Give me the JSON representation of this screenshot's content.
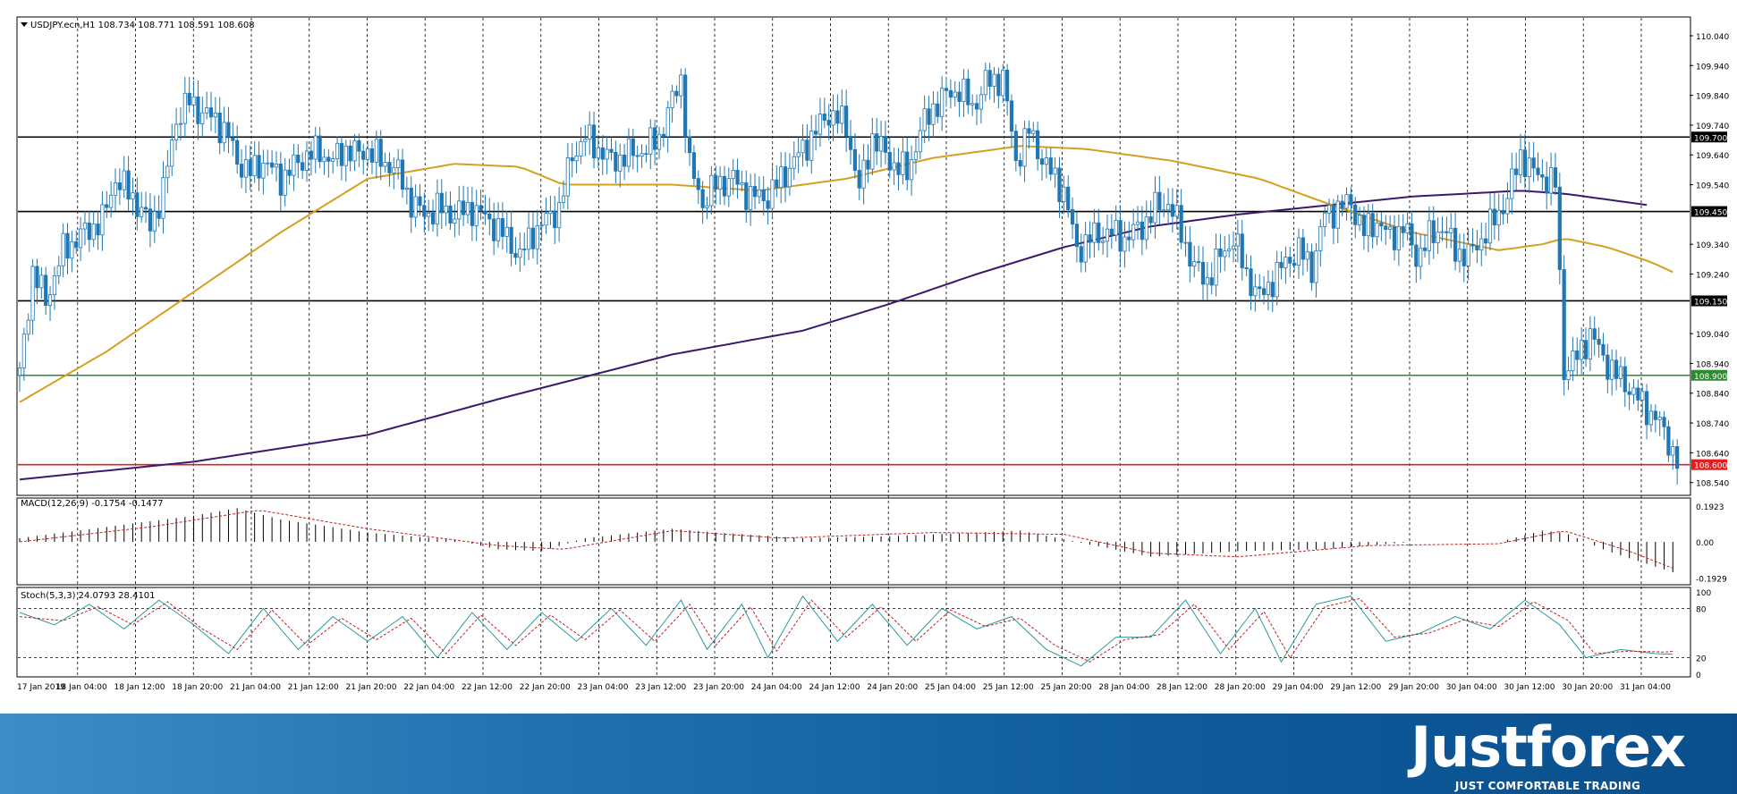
{
  "header": {
    "symbol_info": "USDJPY.ecn,H1  108.734 108.771 108.591 108.608"
  },
  "chart_data": {
    "type": "candlestick",
    "symbol": "USDJPY.ecn",
    "timeframe": "H1",
    "ohlc_header": [
      108.734,
      108.771,
      108.591,
      108.608
    ],
    "y_range": [
      108.5,
      110.1
    ],
    "y_ticks": [
      "110.040",
      "109.940",
      "109.840",
      "109.740",
      "109.640",
      "109.540",
      "109.340",
      "109.240",
      "109.040",
      "108.940",
      "108.840",
      "108.740",
      "108.640",
      "108.540"
    ],
    "x_ticks": [
      "17 Jan 2019",
      "18 Jan 04:00",
      "18 Jan 12:00",
      "18 Jan 20:00",
      "21 Jan 04:00",
      "21 Jan 12:00",
      "21 Jan 20:00",
      "22 Jan 04:00",
      "22 Jan 12:00",
      "22 Jan 20:00",
      "23 Jan 04:00",
      "23 Jan 12:00",
      "23 Jan 20:00",
      "24 Jan 04:00",
      "24 Jan 12:00",
      "24 Jan 20:00",
      "25 Jan 04:00",
      "25 Jan 12:00",
      "25 Jan 20:00",
      "28 Jan 04:00",
      "28 Jan 12:00",
      "28 Jan 20:00",
      "29 Jan 04:00",
      "29 Jan 12:00",
      "29 Jan 20:00",
      "30 Jan 04:00",
      "30 Jan 12:00",
      "30 Jan 20:00",
      "31 Jan 04:00"
    ],
    "levels": [
      {
        "label": "109.700",
        "value": 109.7,
        "color": "#000000"
      },
      {
        "label": "109.450",
        "value": 109.45,
        "color": "#000000"
      },
      {
        "label": "109.150",
        "value": 109.15,
        "color": "#000000"
      },
      {
        "label": "108.900",
        "value": 108.9,
        "color": "#2e8b2e"
      },
      {
        "label": "108.600",
        "value": 108.6,
        "color": "#e02020"
      }
    ],
    "close_path": [
      [
        0,
        108.9
      ],
      [
        3,
        109.25
      ],
      [
        6,
        109.15
      ],
      [
        10,
        109.32
      ],
      [
        15,
        109.38
      ],
      [
        19,
        109.42
      ],
      [
        22,
        109.56
      ],
      [
        26,
        109.5
      ],
      [
        30,
        109.4
      ],
      [
        33,
        109.52
      ],
      [
        36,
        109.76
      ],
      [
        39,
        109.82
      ],
      [
        42,
        109.78
      ],
      [
        45,
        109.76
      ],
      [
        48,
        109.7
      ],
      [
        50,
        109.62
      ],
      [
        53,
        109.58
      ],
      [
        56,
        109.62
      ],
      [
        60,
        109.56
      ],
      [
        63,
        109.6
      ],
      [
        66,
        109.64
      ],
      [
        69,
        109.65
      ],
      [
        72,
        109.62
      ],
      [
        75,
        109.66
      ],
      [
        78,
        109.64
      ],
      [
        80,
        109.66
      ],
      [
        83,
        109.62
      ],
      [
        86,
        109.6
      ],
      [
        88,
        109.55
      ],
      [
        90,
        109.48
      ],
      [
        93,
        109.44
      ],
      [
        96,
        109.46
      ],
      [
        100,
        109.44
      ],
      [
        104,
        109.46
      ],
      [
        108,
        109.42
      ],
      [
        112,
        109.36
      ],
      [
        115,
        109.3
      ],
      [
        118,
        109.38
      ],
      [
        121,
        109.42
      ],
      [
        124,
        109.46
      ],
      [
        127,
        109.64
      ],
      [
        130,
        109.7
      ],
      [
        133,
        109.66
      ],
      [
        136,
        109.62
      ],
      [
        140,
        109.64
      ],
      [
        144,
        109.66
      ],
      [
        147,
        109.7
      ],
      [
        150,
        109.82
      ],
      [
        152,
        109.9
      ],
      [
        154,
        109.6
      ],
      [
        157,
        109.48
      ],
      [
        160,
        109.54
      ],
      [
        164,
        109.56
      ],
      [
        168,
        109.5
      ],
      [
        172,
        109.5
      ],
      [
        176,
        109.58
      ],
      [
        180,
        109.66
      ],
      [
        183,
        109.72
      ],
      [
        186,
        109.78
      ],
      [
        190,
        109.74
      ],
      [
        193,
        109.52
      ],
      [
        196,
        109.7
      ],
      [
        200,
        109.62
      ],
      [
        204,
        109.58
      ],
      [
        207,
        109.72
      ],
      [
        210,
        109.8
      ],
      [
        213,
        109.84
      ],
      [
        216,
        109.86
      ],
      [
        219,
        109.8
      ],
      [
        222,
        109.88
      ],
      [
        226,
        109.9
      ],
      [
        229,
        109.62
      ],
      [
        232,
        109.72
      ],
      [
        236,
        109.6
      ],
      [
        240,
        109.52
      ],
      [
        243,
        109.32
      ],
      [
        246,
        109.36
      ],
      [
        250,
        109.38
      ],
      [
        254,
        109.36
      ],
      [
        258,
        109.4
      ],
      [
        261,
        109.46
      ],
      [
        264,
        109.48
      ],
      [
        267,
        109.38
      ],
      [
        270,
        109.26
      ],
      [
        273,
        109.22
      ],
      [
        276,
        109.3
      ],
      [
        279,
        109.36
      ],
      [
        282,
        109.24
      ],
      [
        285,
        109.16
      ],
      [
        288,
        109.22
      ],
      [
        291,
        109.28
      ],
      [
        294,
        109.32
      ],
      [
        297,
        109.26
      ],
      [
        300,
        109.44
      ],
      [
        303,
        109.46
      ],
      [
        306,
        109.48
      ],
      [
        309,
        109.38
      ],
      [
        312,
        109.42
      ],
      [
        315,
        109.36
      ],
      [
        318,
        109.4
      ],
      [
        321,
        109.3
      ],
      [
        324,
        109.36
      ],
      [
        327,
        109.4
      ],
      [
        330,
        109.32
      ],
      [
        333,
        109.3
      ],
      [
        336,
        109.36
      ],
      [
        339,
        109.42
      ],
      [
        342,
        109.5
      ],
      [
        345,
        109.64
      ],
      [
        348,
        109.58
      ],
      [
        351,
        109.56
      ],
      [
        353,
        109.54
      ],
      [
        355,
        108.92
      ],
      [
        358,
        108.96
      ],
      [
        361,
        109.04
      ],
      [
        364,
        108.96
      ],
      [
        367,
        108.9
      ],
      [
        370,
        108.86
      ],
      [
        373,
        108.8
      ],
      [
        376,
        108.76
      ],
      [
        379,
        108.68
      ],
      [
        381,
        108.61
      ]
    ],
    "ma_slow_path": [
      [
        0,
        108.55
      ],
      [
        40,
        108.61
      ],
      [
        80,
        108.7
      ],
      [
        110,
        108.82
      ],
      [
        150,
        108.97
      ],
      [
        180,
        109.05
      ],
      [
        200,
        109.14
      ],
      [
        220,
        109.24
      ],
      [
        240,
        109.33
      ],
      [
        260,
        109.4
      ],
      [
        280,
        109.44
      ],
      [
        300,
        109.47
      ],
      [
        320,
        109.5
      ],
      [
        345,
        109.52
      ],
      [
        355,
        109.51
      ],
      [
        375,
        109.47
      ]
    ],
    "ma_fast_path": [
      [
        0,
        108.81
      ],
      [
        20,
        108.98
      ],
      [
        40,
        109.18
      ],
      [
        60,
        109.38
      ],
      [
        80,
        109.56
      ],
      [
        100,
        109.61
      ],
      [
        115,
        109.6
      ],
      [
        125,
        109.54
      ],
      [
        150,
        109.54
      ],
      [
        170,
        109.52
      ],
      [
        190,
        109.56
      ],
      [
        210,
        109.63
      ],
      [
        230,
        109.67
      ],
      [
        245,
        109.66
      ],
      [
        265,
        109.62
      ],
      [
        285,
        109.56
      ],
      [
        300,
        109.48
      ],
      [
        320,
        109.38
      ],
      [
        340,
        109.32
      ],
      [
        350,
        109.34
      ],
      [
        355,
        109.36
      ],
      [
        365,
        109.33
      ],
      [
        375,
        109.28
      ],
      [
        381,
        109.24
      ]
    ],
    "macd": {
      "label": "MACD(12,26,9) -0.1754 -0.1477",
      "ticks": [
        "0.1923",
        "0.00",
        "-0.1929"
      ],
      "range": [
        -0.22,
        0.22
      ],
      "hist_path": [
        [
          0,
          0.02
        ],
        [
          20,
          0.08
        ],
        [
          40,
          0.14
        ],
        [
          50,
          0.18
        ],
        [
          60,
          0.12
        ],
        [
          80,
          0.05
        ],
        [
          100,
          0.01
        ],
        [
          110,
          -0.04
        ],
        [
          120,
          -0.05
        ],
        [
          130,
          0.02
        ],
        [
          150,
          0.07
        ],
        [
          160,
          0.05
        ],
        [
          180,
          0.02
        ],
        [
          200,
          0.03
        ],
        [
          230,
          0.06
        ],
        [
          243,
          0.0
        ],
        [
          260,
          -0.08
        ],
        [
          280,
          -0.05
        ],
        [
          300,
          -0.04
        ],
        [
          320,
          0.0
        ],
        [
          340,
          0.0
        ],
        [
          350,
          0.06
        ],
        [
          355,
          0.05
        ],
        [
          365,
          -0.05
        ],
        [
          381,
          -0.17
        ]
      ],
      "signal_path": [
        [
          0,
          0.0
        ],
        [
          30,
          0.08
        ],
        [
          55,
          0.17
        ],
        [
          80,
          0.07
        ],
        [
          110,
          -0.02
        ],
        [
          125,
          -0.04
        ],
        [
          150,
          0.06
        ],
        [
          175,
          0.02
        ],
        [
          210,
          0.05
        ],
        [
          240,
          0.04
        ],
        [
          260,
          -0.06
        ],
        [
          280,
          -0.08
        ],
        [
          310,
          -0.02
        ],
        [
          340,
          -0.01
        ],
        [
          355,
          0.06
        ],
        [
          370,
          -0.05
        ],
        [
          381,
          -0.15
        ]
      ]
    },
    "stoch": {
      "label": "Stoch(5,3,3) 24.0793 28.4101",
      "ticks": [
        "100",
        "80",
        "20",
        "0"
      ],
      "range": [
        0,
        100
      ],
      "k_path": [
        [
          0,
          75
        ],
        [
          8,
          60
        ],
        [
          16,
          85
        ],
        [
          24,
          55
        ],
        [
          32,
          90
        ],
        [
          40,
          60
        ],
        [
          48,
          25
        ],
        [
          56,
          80
        ],
        [
          64,
          30
        ],
        [
          72,
          70
        ],
        [
          80,
          40
        ],
        [
          88,
          70
        ],
        [
          96,
          20
        ],
        [
          104,
          75
        ],
        [
          112,
          30
        ],
        [
          120,
          75
        ],
        [
          128,
          40
        ],
        [
          136,
          80
        ],
        [
          144,
          35
        ],
        [
          152,
          90
        ],
        [
          158,
          30
        ],
        [
          166,
          85
        ],
        [
          172,
          20
        ],
        [
          180,
          95
        ],
        [
          188,
          40
        ],
        [
          196,
          85
        ],
        [
          204,
          35
        ],
        [
          212,
          80
        ],
        [
          220,
          55
        ],
        [
          228,
          70
        ],
        [
          236,
          30
        ],
        [
          244,
          10
        ],
        [
          252,
          45
        ],
        [
          260,
          45
        ],
        [
          268,
          90
        ],
        [
          276,
          25
        ],
        [
          284,
          80
        ],
        [
          290,
          15
        ],
        [
          298,
          85
        ],
        [
          306,
          95
        ],
        [
          314,
          40
        ],
        [
          322,
          50
        ],
        [
          330,
          70
        ],
        [
          338,
          55
        ],
        [
          346,
          90
        ],
        [
          354,
          60
        ],
        [
          360,
          20
        ],
        [
          368,
          30
        ],
        [
          376,
          25
        ],
        [
          381,
          24
        ]
      ],
      "d_path": [
        [
          0,
          70
        ],
        [
          10,
          65
        ],
        [
          18,
          82
        ],
        [
          26,
          60
        ],
        [
          34,
          88
        ],
        [
          42,
          55
        ],
        [
          50,
          30
        ],
        [
          58,
          78
        ],
        [
          66,
          35
        ],
        [
          74,
          68
        ],
        [
          82,
          42
        ],
        [
          90,
          68
        ],
        [
          98,
          25
        ],
        [
          106,
          72
        ],
        [
          114,
          35
        ],
        [
          122,
          72
        ],
        [
          130,
          42
        ],
        [
          138,
          78
        ],
        [
          146,
          40
        ],
        [
          154,
          85
        ],
        [
          160,
          35
        ],
        [
          168,
          82
        ],
        [
          174,
          28
        ],
        [
          182,
          90
        ],
        [
          190,
          45
        ],
        [
          198,
          82
        ],
        [
          206,
          40
        ],
        [
          214,
          78
        ],
        [
          222,
          58
        ],
        [
          230,
          68
        ],
        [
          238,
          35
        ],
        [
          246,
          15
        ],
        [
          254,
          42
        ],
        [
          262,
          48
        ],
        [
          270,
          85
        ],
        [
          278,
          30
        ],
        [
          286,
          76
        ],
        [
          292,
          20
        ],
        [
          300,
          82
        ],
        [
          308,
          92
        ],
        [
          316,
          45
        ],
        [
          324,
          50
        ],
        [
          332,
          66
        ],
        [
          340,
          58
        ],
        [
          348,
          88
        ],
        [
          356,
          65
        ],
        [
          362,
          25
        ],
        [
          370,
          28
        ],
        [
          378,
          27
        ],
        [
          381,
          28
        ]
      ]
    }
  },
  "brand": {
    "name": "Justforex",
    "tagline": "JUST COMFORTABLE TRADING"
  }
}
